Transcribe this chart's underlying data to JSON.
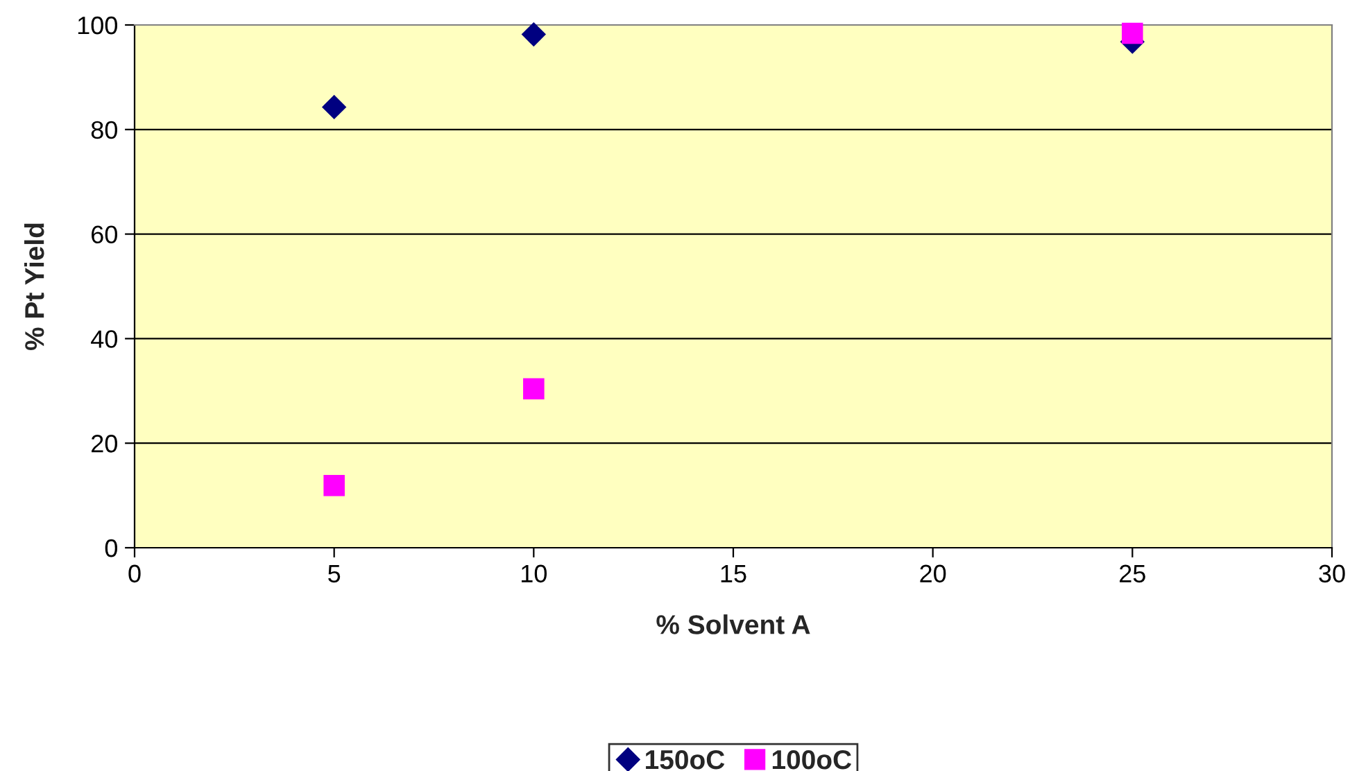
{
  "chart_data": {
    "type": "scatter",
    "xlabel": "% Solvent A",
    "ylabel": "% Pt Yield",
    "series": [
      {
        "name": "150oC",
        "color": "#000080",
        "x": [
          5,
          10,
          25
        ],
        "values": [
          84.3,
          98.2,
          96.8
        ],
        "marker": "diamond"
      },
      {
        "name": "100oC",
        "color": "#ff00ff",
        "x": [
          5,
          10,
          25
        ],
        "values": [
          11.9,
          30.4,
          98.4
        ],
        "marker": "square"
      }
    ],
    "xlim": [
      0,
      30
    ],
    "xticks": [
      0,
      5,
      10,
      15,
      20,
      25,
      30
    ],
    "ylim": [
      0,
      100
    ],
    "yticks": [
      0,
      20,
      40,
      60,
      80,
      100
    ],
    "grid": "y",
    "legend": "bottom"
  }
}
